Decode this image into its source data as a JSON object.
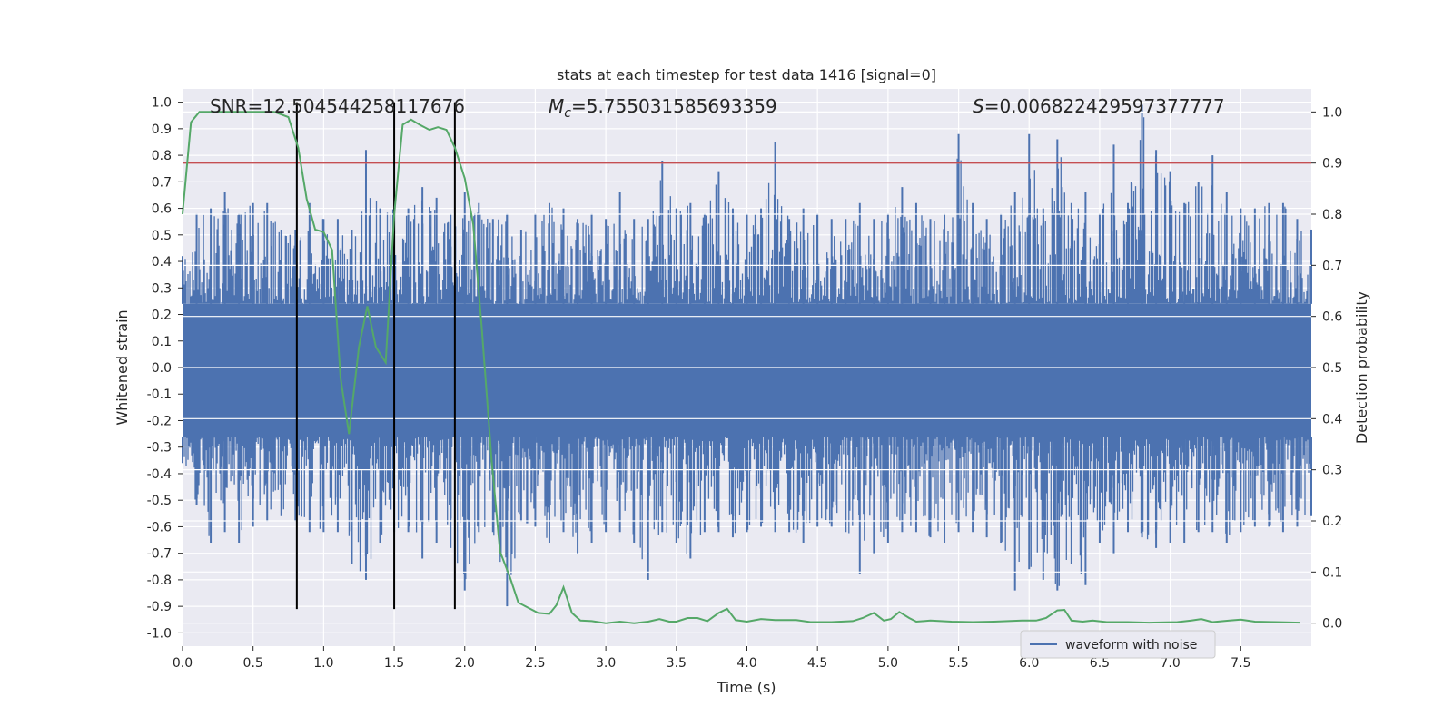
{
  "chart_data": {
    "type": "line",
    "title": "stats at each timestep for test data 1416 [signal=0]",
    "xlabel": "Time (s)",
    "ylabel_left": "Whitened strain",
    "ylabel_right": "Detection probability",
    "xlim": [
      0.0,
      8.0
    ],
    "ylim_left": [
      -1.05,
      1.05
    ],
    "ylim_right": [
      -0.045,
      1.045
    ],
    "x_ticks": [
      0.0,
      0.5,
      1.0,
      1.5,
      2.0,
      2.5,
      3.0,
      3.5,
      4.0,
      4.5,
      5.0,
      5.5,
      6.0,
      6.5,
      7.0,
      7.5
    ],
    "x_tick_labels": [
      "0.0",
      "0.5",
      "1.0",
      "1.5",
      "2.0",
      "2.5",
      "3.0",
      "3.5",
      "4.0",
      "4.5",
      "5.0",
      "5.5",
      "6.0",
      "6.5",
      "7.0",
      "7.5"
    ],
    "y_left_ticks": [
      1.0,
      0.9,
      0.8,
      0.7,
      0.6,
      0.5,
      0.4,
      0.3,
      0.2,
      0.1,
      0.0,
      -0.1,
      -0.2,
      -0.3,
      -0.4,
      -0.5,
      -0.6,
      -0.7,
      -0.8,
      -0.9,
      -1.0
    ],
    "y_left_tick_labels": [
      "1.0",
      "0.9",
      "0.8",
      "0.7",
      "0.6",
      "0.5",
      "0.4",
      "0.3",
      "0.2",
      "0.1",
      "0.0",
      "-0.1",
      "-0.2",
      "-0.3",
      "-0.4",
      "-0.5",
      "-0.6",
      "-0.7",
      "-0.8",
      "-0.9",
      "-1.0"
    ],
    "y_right_ticks": [
      1.0,
      0.9,
      0.8,
      0.7,
      0.6,
      0.5,
      0.4,
      0.3,
      0.2,
      0.1,
      0.0
    ],
    "y_right_tick_labels": [
      "1.0",
      "0.9",
      "0.8",
      "0.7",
      "0.6",
      "0.5",
      "0.4",
      "0.3",
      "0.2",
      "0.1",
      "0.0"
    ],
    "annotations": {
      "snr": "SNR=12.504544258117676",
      "mc_symbol": "M",
      "mc_sub": "c",
      "mc_value": "=5.755031585693359",
      "s_symbol": "S",
      "s_value": "=0.006822429597377777"
    },
    "threshold_right": 0.9,
    "vertical_markers": [
      0.81,
      1.5,
      1.93
    ],
    "vertical_marker_range_left": [
      -0.91,
      1.0
    ],
    "legend": {
      "placement": "lower-right",
      "entries": [
        "waveform with noise"
      ]
    },
    "grid": true,
    "colors": {
      "background": "#eaeaf2",
      "grid": "#ffffff",
      "strain": "#4c72b0",
      "probability": "#55a868",
      "threshold": "#c44e52",
      "markers": "#000000"
    },
    "series": [
      {
        "name": "waveform with noise",
        "axis": "left",
        "envelope_upper": [
          [
            0.0,
            0.42
          ],
          [
            0.1,
            0.58
          ],
          [
            0.2,
            0.6
          ],
          [
            0.3,
            0.66
          ],
          [
            0.4,
            0.58
          ],
          [
            0.5,
            0.62
          ],
          [
            0.6,
            0.62
          ],
          [
            0.7,
            0.52
          ],
          [
            0.8,
            0.52
          ],
          [
            0.9,
            0.62
          ],
          [
            1.0,
            0.56
          ],
          [
            1.1,
            0.56
          ],
          [
            1.2,
            0.52
          ],
          [
            1.3,
            0.82
          ],
          [
            1.4,
            0.6
          ],
          [
            1.5,
            0.6
          ],
          [
            1.6,
            0.6
          ],
          [
            1.7,
            0.68
          ],
          [
            1.8,
            0.64
          ],
          [
            1.9,
            0.58
          ],
          [
            2.0,
            0.66
          ],
          [
            2.1,
            0.62
          ],
          [
            2.2,
            0.56
          ],
          [
            2.3,
            0.58
          ],
          [
            2.4,
            0.52
          ],
          [
            2.5,
            0.58
          ],
          [
            2.6,
            0.62
          ],
          [
            2.7,
            0.6
          ],
          [
            2.8,
            0.56
          ],
          [
            2.9,
            0.58
          ],
          [
            3.0,
            0.56
          ],
          [
            3.1,
            0.66
          ],
          [
            3.2,
            0.56
          ],
          [
            3.3,
            0.56
          ],
          [
            3.4,
            0.78
          ],
          [
            3.5,
            0.6
          ],
          [
            3.6,
            0.62
          ],
          [
            3.7,
            0.58
          ],
          [
            3.8,
            0.74
          ],
          [
            3.9,
            0.6
          ],
          [
            4.0,
            0.58
          ],
          [
            4.1,
            0.6
          ],
          [
            4.2,
            0.85
          ],
          [
            4.3,
            0.56
          ],
          [
            4.4,
            0.6
          ],
          [
            4.5,
            0.58
          ],
          [
            4.6,
            0.56
          ],
          [
            4.7,
            0.56
          ],
          [
            4.8,
            0.62
          ],
          [
            4.9,
            0.56
          ],
          [
            5.0,
            0.58
          ],
          [
            5.1,
            0.68
          ],
          [
            5.2,
            0.62
          ],
          [
            5.3,
            0.56
          ],
          [
            5.4,
            0.58
          ],
          [
            5.5,
            0.88
          ],
          [
            5.6,
            0.62
          ],
          [
            5.7,
            0.56
          ],
          [
            5.8,
            0.58
          ],
          [
            5.9,
            0.66
          ],
          [
            6.0,
            0.88
          ],
          [
            6.1,
            0.6
          ],
          [
            6.2,
            0.86
          ],
          [
            6.3,
            0.62
          ],
          [
            6.4,
            0.66
          ],
          [
            6.5,
            0.58
          ],
          [
            6.6,
            0.84
          ],
          [
            6.7,
            0.62
          ],
          [
            6.8,
            0.99
          ],
          [
            6.9,
            0.82
          ],
          [
            7.0,
            0.74
          ],
          [
            7.1,
            0.62
          ],
          [
            7.2,
            0.7
          ],
          [
            7.3,
            0.8
          ],
          [
            7.4,
            0.66
          ],
          [
            7.5,
            0.6
          ],
          [
            7.6,
            0.6
          ],
          [
            7.7,
            0.62
          ],
          [
            7.8,
            0.62
          ],
          [
            7.9,
            0.56
          ],
          [
            8.0,
            0.52
          ]
        ],
        "envelope_lower": [
          [
            0.0,
            -0.36
          ],
          [
            0.1,
            -0.52
          ],
          [
            0.2,
            -0.66
          ],
          [
            0.3,
            -0.62
          ],
          [
            0.4,
            -0.66
          ],
          [
            0.5,
            -0.6
          ],
          [
            0.6,
            -0.58
          ],
          [
            0.7,
            -0.56
          ],
          [
            0.8,
            -0.58
          ],
          [
            0.9,
            -0.62
          ],
          [
            1.0,
            -0.62
          ],
          [
            1.1,
            -0.62
          ],
          [
            1.2,
            -0.74
          ],
          [
            1.3,
            -0.8
          ],
          [
            1.4,
            -0.66
          ],
          [
            1.5,
            -0.62
          ],
          [
            1.6,
            -0.62
          ],
          [
            1.7,
            -0.72
          ],
          [
            1.8,
            -0.66
          ],
          [
            1.9,
            -0.68
          ],
          [
            2.0,
            -0.84
          ],
          [
            2.1,
            -0.62
          ],
          [
            2.2,
            -0.62
          ],
          [
            2.3,
            -0.9
          ],
          [
            2.4,
            -0.58
          ],
          [
            2.5,
            -0.6
          ],
          [
            2.6,
            -0.66
          ],
          [
            2.7,
            -0.62
          ],
          [
            2.8,
            -0.7
          ],
          [
            2.9,
            -0.66
          ],
          [
            3.0,
            -0.62
          ],
          [
            3.1,
            -0.62
          ],
          [
            3.2,
            -0.66
          ],
          [
            3.3,
            -0.8
          ],
          [
            3.4,
            -0.62
          ],
          [
            3.5,
            -0.66
          ],
          [
            3.6,
            -0.72
          ],
          [
            3.7,
            -0.62
          ],
          [
            3.8,
            -0.62
          ],
          [
            3.9,
            -0.64
          ],
          [
            4.0,
            -0.62
          ],
          [
            4.1,
            -0.6
          ],
          [
            4.2,
            -0.62
          ],
          [
            4.3,
            -0.62
          ],
          [
            4.4,
            -0.66
          ],
          [
            4.5,
            -0.6
          ],
          [
            4.6,
            -0.6
          ],
          [
            4.7,
            -0.62
          ],
          [
            4.8,
            -0.78
          ],
          [
            4.9,
            -0.7
          ],
          [
            5.0,
            -0.66
          ],
          [
            5.1,
            -0.62
          ],
          [
            5.2,
            -0.62
          ],
          [
            5.3,
            -0.64
          ],
          [
            5.4,
            -0.66
          ],
          [
            5.5,
            -0.62
          ],
          [
            5.6,
            -0.62
          ],
          [
            5.7,
            -0.64
          ],
          [
            5.8,
            -0.66
          ],
          [
            5.9,
            -0.84
          ],
          [
            6.0,
            -0.76
          ],
          [
            6.1,
            -0.8
          ],
          [
            6.2,
            -0.84
          ],
          [
            6.3,
            -0.74
          ],
          [
            6.4,
            -0.82
          ],
          [
            6.5,
            -0.66
          ],
          [
            6.6,
            -0.7
          ],
          [
            6.7,
            -0.62
          ],
          [
            6.8,
            -0.64
          ],
          [
            6.9,
            -0.68
          ],
          [
            7.0,
            -0.66
          ],
          [
            7.1,
            -0.66
          ],
          [
            7.2,
            -0.62
          ],
          [
            7.3,
            -0.62
          ],
          [
            7.4,
            -0.66
          ],
          [
            7.5,
            -0.62
          ],
          [
            7.6,
            -0.6
          ],
          [
            7.7,
            -0.6
          ],
          [
            7.8,
            -0.62
          ],
          [
            7.9,
            -0.6
          ],
          [
            8.0,
            -0.56
          ]
        ]
      },
      {
        "name": "",
        "axis": "right",
        "points": [
          [
            0.0,
            0.8
          ],
          [
            0.06,
            0.98
          ],
          [
            0.12,
            1.0
          ],
          [
            0.3,
            1.0
          ],
          [
            0.5,
            1.0
          ],
          [
            0.65,
            1.0
          ],
          [
            0.75,
            0.99
          ],
          [
            0.82,
            0.93
          ],
          [
            0.88,
            0.83
          ],
          [
            0.94,
            0.77
          ],
          [
            1.0,
            0.765
          ],
          [
            1.06,
            0.73
          ],
          [
            1.12,
            0.48
          ],
          [
            1.18,
            0.37
          ],
          [
            1.25,
            0.54
          ],
          [
            1.31,
            0.62
          ],
          [
            1.37,
            0.54
          ],
          [
            1.44,
            0.51
          ],
          [
            1.5,
            0.8
          ],
          [
            1.56,
            0.975
          ],
          [
            1.62,
            0.985
          ],
          [
            1.68,
            0.975
          ],
          [
            1.75,
            0.965
          ],
          [
            1.81,
            0.97
          ],
          [
            1.87,
            0.965
          ],
          [
            1.93,
            0.93
          ],
          [
            2.0,
            0.87
          ],
          [
            2.06,
            0.78
          ],
          [
            2.12,
            0.58
          ],
          [
            2.19,
            0.32
          ],
          [
            2.25,
            0.14
          ],
          [
            2.32,
            0.09
          ],
          [
            2.38,
            0.04
          ],
          [
            2.45,
            0.03
          ],
          [
            2.52,
            0.02
          ],
          [
            2.6,
            0.018
          ],
          [
            2.65,
            0.035
          ],
          [
            2.7,
            0.07
          ],
          [
            2.76,
            0.02
          ],
          [
            2.82,
            0.005
          ],
          [
            2.9,
            0.004
          ],
          [
            3.0,
            0.0
          ],
          [
            3.1,
            0.003
          ],
          [
            3.2,
            0.0
          ],
          [
            3.3,
            0.003
          ],
          [
            3.38,
            0.008
          ],
          [
            3.45,
            0.003
          ],
          [
            3.5,
            0.003
          ],
          [
            3.58,
            0.01
          ],
          [
            3.65,
            0.01
          ],
          [
            3.72,
            0.004
          ],
          [
            3.8,
            0.02
          ],
          [
            3.86,
            0.028
          ],
          [
            3.92,
            0.006
          ],
          [
            4.0,
            0.003
          ],
          [
            4.1,
            0.008
          ],
          [
            4.2,
            0.006
          ],
          [
            4.35,
            0.006
          ],
          [
            4.45,
            0.002
          ],
          [
            4.6,
            0.002
          ],
          [
            4.75,
            0.004
          ],
          [
            4.82,
            0.01
          ],
          [
            4.9,
            0.02
          ],
          [
            4.97,
            0.005
          ],
          [
            5.02,
            0.008
          ],
          [
            5.08,
            0.022
          ],
          [
            5.15,
            0.01
          ],
          [
            5.2,
            0.003
          ],
          [
            5.3,
            0.005
          ],
          [
            5.45,
            0.003
          ],
          [
            5.6,
            0.002
          ],
          [
            5.75,
            0.003
          ],
          [
            5.85,
            0.004
          ],
          [
            5.95,
            0.005
          ],
          [
            6.05,
            0.005
          ],
          [
            6.12,
            0.01
          ],
          [
            6.2,
            0.025
          ],
          [
            6.25,
            0.026
          ],
          [
            6.3,
            0.005
          ],
          [
            6.38,
            0.003
          ],
          [
            6.45,
            0.005
          ],
          [
            6.55,
            0.002
          ],
          [
            6.7,
            0.002
          ],
          [
            6.85,
            0.001
          ],
          [
            7.05,
            0.002
          ],
          [
            7.15,
            0.005
          ],
          [
            7.22,
            0.008
          ],
          [
            7.3,
            0.002
          ],
          [
            7.42,
            0.005
          ],
          [
            7.5,
            0.007
          ],
          [
            7.6,
            0.003
          ],
          [
            7.75,
            0.002
          ],
          [
            7.92,
            0.001
          ]
        ]
      }
    ]
  }
}
